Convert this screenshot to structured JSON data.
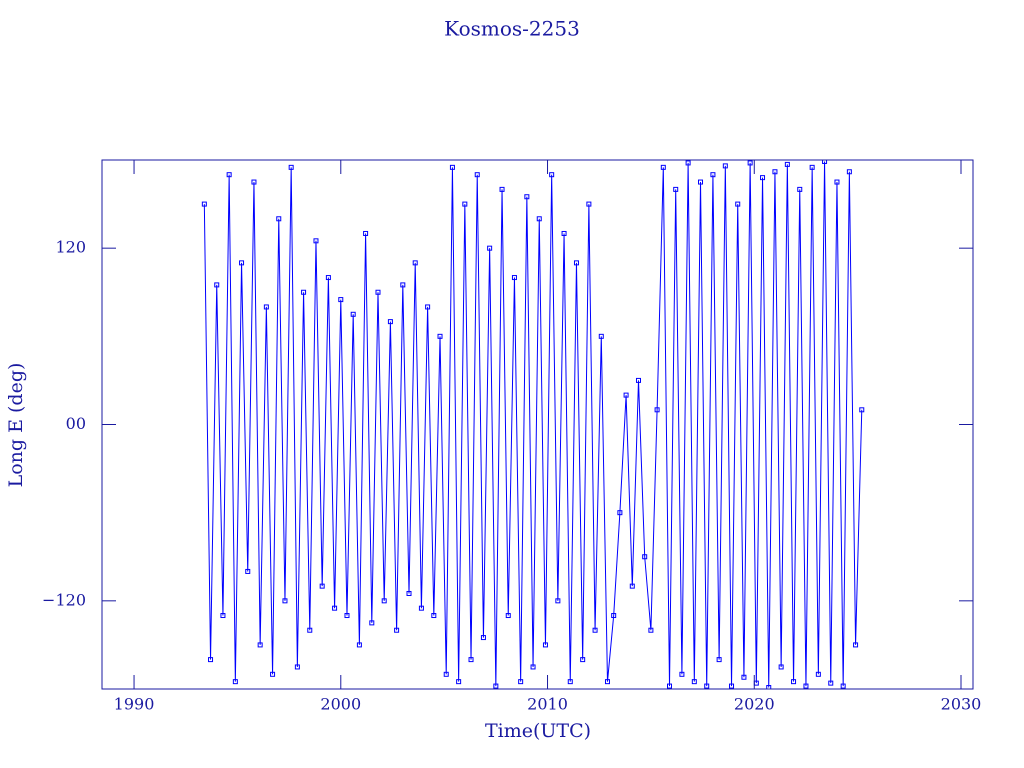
{
  "chart_data": {
    "type": "line",
    "title": "Kosmos-2253",
    "x_label": "Time(UTC)",
    "y_label": "Long E (deg)",
    "color": "#0000ff",
    "markers": true,
    "xlim": [
      1988.45,
      2030.58
    ],
    "xticks": [
      1990,
      2000,
      2010,
      2020,
      2030
    ],
    "ylim": [
      -180,
      180
    ],
    "yticks": [
      {
        "value": -120,
        "label": "−120"
      },
      {
        "value": 0,
        "label": "00"
      },
      120
    ],
    "x": [
      1993.4,
      1993.7,
      1994.0,
      1994.3,
      1994.6,
      1994.9,
      1995.2,
      1995.5,
      1995.8,
      1996.1,
      1996.4,
      1996.7,
      1997.0,
      1997.3,
      1997.6,
      1997.9,
      1998.2,
      1998.5,
      1998.8,
      1999.1,
      1999.4,
      1999.7,
      2000.0,
      2000.3,
      2000.6,
      2000.9,
      2001.2,
      2001.5,
      2001.8,
      2002.1,
      2002.4,
      2002.7,
      2003.0,
      2003.3,
      2003.6,
      2003.9,
      2004.2,
      2004.5,
      2004.8,
      2005.1,
      2005.4,
      2005.7,
      2006.0,
      2006.3,
      2006.6,
      2006.9,
      2007.2,
      2007.5,
      2007.8,
      2008.1,
      2008.4,
      2008.7,
      2009.0,
      2009.3,
      2009.6,
      2009.9,
      2010.2,
      2010.5,
      2010.8,
      2011.1,
      2011.4,
      2011.7,
      2012.0,
      2012.3,
      2012.6,
      2012.9,
      2013.2,
      2013.5,
      2013.8,
      2014.1,
      2014.4,
      2014.7,
      2015.0,
      2015.3,
      2015.6,
      2015.9,
      2016.2,
      2016.5,
      2016.8,
      2017.1,
      2017.4,
      2017.7,
      2018.0,
      2018.3,
      2018.6,
      2018.9,
      2019.2,
      2019.5,
      2019.8,
      2020.1,
      2020.4,
      2020.7,
      2021.0,
      2021.3,
      2021.6,
      2021.9,
      2022.2,
      2022.5,
      2022.8,
      2023.1,
      2023.4,
      2023.7,
      2024.0,
      2024.3,
      2024.6,
      2024.9,
      2025.2
    ],
    "values": [
      150,
      -160,
      95,
      -130,
      170,
      -175,
      110,
      -100,
      165,
      -150,
      80,
      -170,
      140,
      -120,
      175,
      -165,
      90,
      -140,
      125,
      -110,
      100,
      -125,
      85,
      -130,
      75,
      -150,
      130,
      -135,
      90,
      -120,
      70,
      -140,
      95,
      -115,
      110,
      -125,
      80,
      -130,
      60,
      -170,
      175,
      -175,
      150,
      -160,
      170,
      -145,
      120,
      -178,
      160,
      -130,
      100,
      -175,
      155,
      -165,
      140,
      -150,
      170,
      -120,
      130,
      -175,
      110,
      -160,
      150,
      -140,
      60,
      -175,
      -130,
      -60,
      20,
      -110,
      30,
      -90,
      -140,
      10,
      175,
      -178,
      160,
      -170,
      178,
      -175,
      165,
      -178,
      170,
      -160,
      176,
      -178,
      150,
      -172,
      178,
      -176,
      168,
      -179,
      172,
      -165,
      177,
      -175,
      160,
      -178,
      175,
      -170,
      179,
      -176,
      165,
      -178,
      172,
      -150,
      10
    ]
  }
}
